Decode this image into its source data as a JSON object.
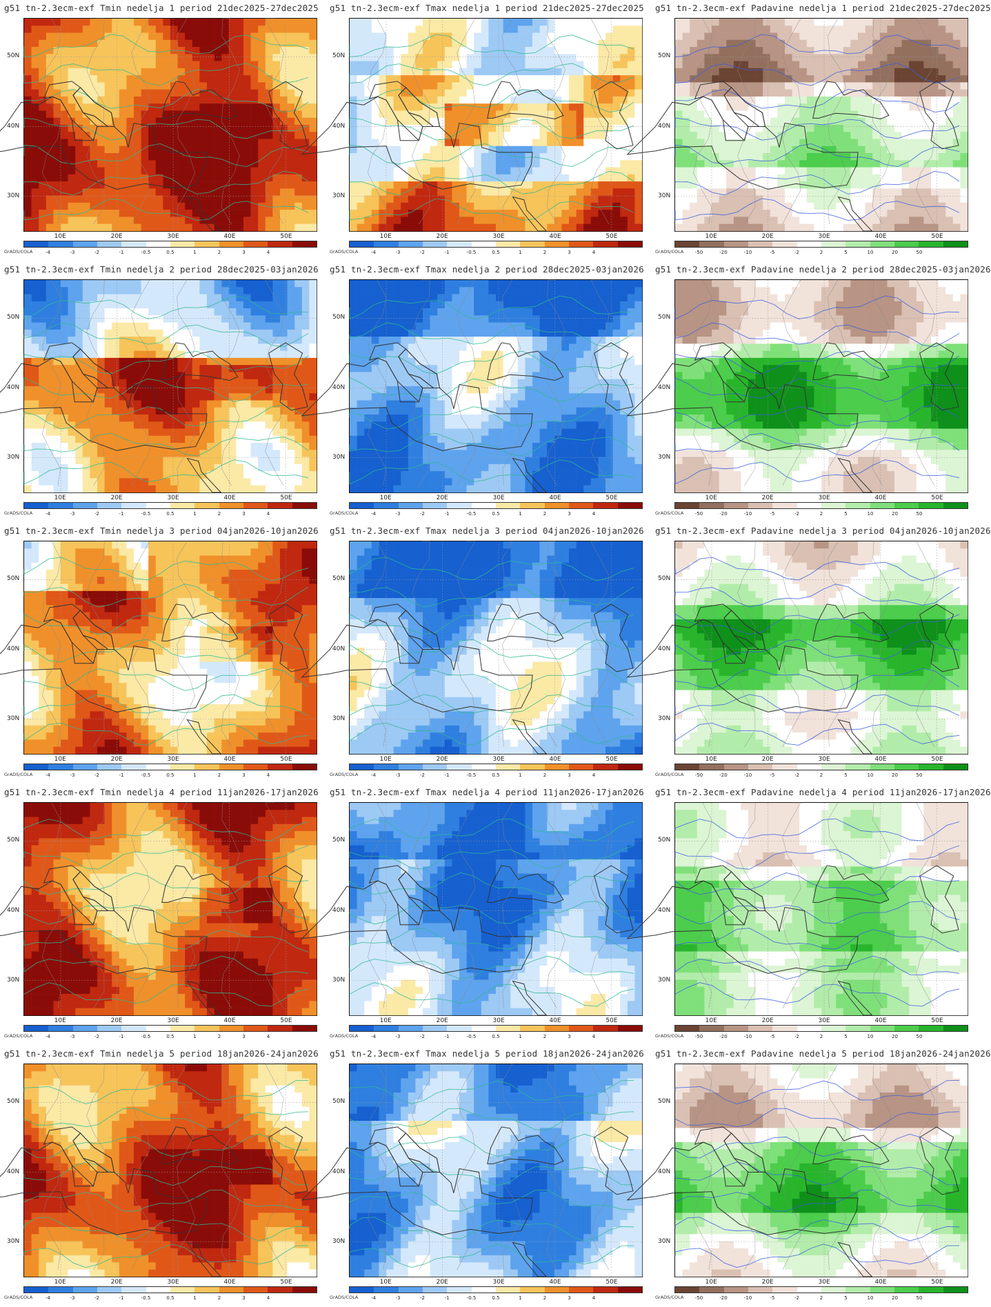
{
  "colorbars": {
    "temp": {
      "labels": [
        "-4",
        "-3",
        "-2",
        "-1",
        "-0.5",
        "0.5",
        "1",
        "2",
        "3",
        "4"
      ],
      "colors": [
        "#1660d0",
        "#2f7fe0",
        "#5ea3ee",
        "#9dc9f5",
        "#d4e8fb",
        "#ffffff",
        "#fbe9a6",
        "#f7c45a",
        "#f0902a",
        "#e05818",
        "#c02810",
        "#8a0c08"
      ]
    },
    "prec": {
      "labels": [
        "-50",
        "-20",
        "-10",
        "-5",
        "-2",
        "2",
        "5",
        "10",
        "20",
        "50"
      ],
      "colors": [
        "#6b4433",
        "#93705e",
        "#b89484",
        "#d9c0b3",
        "#f1e2da",
        "#ffffff",
        "#dcf5d4",
        "#b2ecaa",
        "#7fe07a",
        "#4ccd4c",
        "#28b52c",
        "#0e901a"
      ]
    }
  },
  "axes": {
    "lat_labels": [
      "50N",
      "40N",
      "30N"
    ],
    "lon_labels": [
      "10E",
      "20E",
      "30E",
      "40E",
      "50E"
    ]
  },
  "grads_label": "GrADS/COLA",
  "panels": [
    {
      "title": "g51 tn-2.3ecm-exf Tmin nedelja 1 period 21dec2025-27dec2025",
      "bar": "temp",
      "field": "tmin",
      "week": 1
    },
    {
      "title": "g51 tn-2.3ecm-exf Tmax nedelja 1 period 21dec2025-27dec2025",
      "bar": "temp",
      "field": "tmax",
      "week": 1
    },
    {
      "title": "g51 tn-2.3ecm-exf Padavine nedelja 1 period 21dec2025-27dec2025",
      "bar": "prec",
      "field": "prec",
      "week": 1
    },
    {
      "title": "g51 tn-2.3ecm-exf Tmin nedelja 2 period 28dec2025-03jan2026",
      "bar": "temp",
      "field": "tmin",
      "week": 2
    },
    {
      "title": "g51 tn-2.3ecm-exf Tmax nedelja 2 period 28dec2025-03jan2026",
      "bar": "temp",
      "field": "tmax",
      "week": 2
    },
    {
      "title": "g51 tn-2.3ecm-exf Padavine nedelja 2 period 28dec2025-03jan2026",
      "bar": "prec",
      "field": "prec",
      "week": 2
    },
    {
      "title": "g51 tn-2.3ecm-exf Tmin nedelja 3 period 04jan2026-10jan2026",
      "bar": "temp",
      "field": "tmin",
      "week": 3
    },
    {
      "title": "g51 tn-2.3ecm-exf Tmax nedelja 3 period 04jan2026-10jan2026",
      "bar": "temp",
      "field": "tmax",
      "week": 3
    },
    {
      "title": "g51 tn-2.3ecm-exf Padavine nedelja 3 period 04jan2026-10jan2026",
      "bar": "prec",
      "field": "prec",
      "week": 3
    },
    {
      "title": "g51 tn-2.3ecm-exf Tmin nedelja 4 period 11jan2026-17jan2026",
      "bar": "temp",
      "field": "tmin",
      "week": 4
    },
    {
      "title": "g51 tn-2.3ecm-exf Tmax nedelja 4 period 11jan2026-17jan2026",
      "bar": "temp",
      "field": "tmax",
      "week": 4
    },
    {
      "title": "g51 tn-2.3ecm-exf Padavine nedelja 4 period 11jan2026-17jan2026",
      "bar": "prec",
      "field": "prec",
      "week": 4
    },
    {
      "title": "g51 tn-2.3ecm-exf Tmin nedelja 5 period 18jan2026-24jan2026",
      "bar": "temp",
      "field": "tmin",
      "week": 5
    },
    {
      "title": "g51 tn-2.3ecm-exf Tmax nedelja 5 period 18jan2026-24jan2026",
      "bar": "temp",
      "field": "tmax",
      "week": 5
    },
    {
      "title": "g51 tn-2.3ecm-exf Padavine nedelja 5 period 18jan2026-24jan2026",
      "bar": "prec",
      "field": "prec",
      "week": 5
    }
  ]
}
